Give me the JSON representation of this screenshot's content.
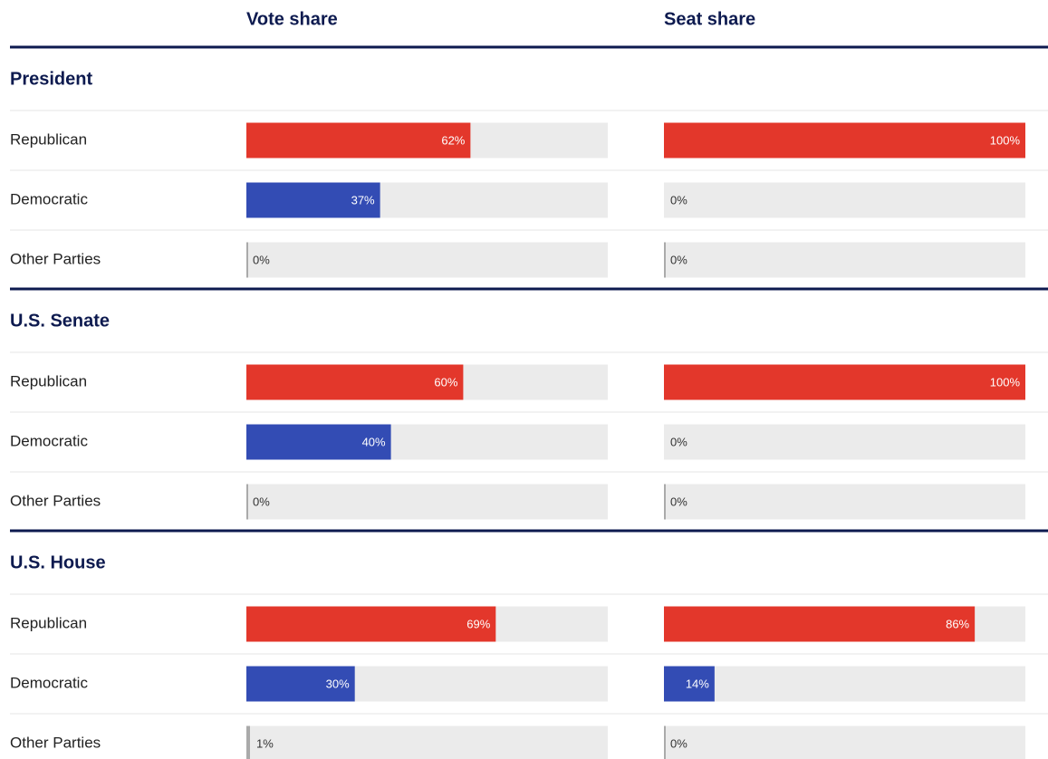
{
  "columns": [
    "Vote share",
    "Seat share"
  ],
  "sections": [
    {
      "title": "President",
      "rows": [
        {
          "party": "Republican",
          "color": "#e3372b",
          "values": [
            62,
            100
          ],
          "value_labels": [
            "62%",
            "100%"
          ]
        },
        {
          "party": "Democratic",
          "color": "#334cb4",
          "values": [
            37,
            0
          ],
          "value_labels": [
            "37%",
            "0%"
          ]
        },
        {
          "party": "Other Parties",
          "color": "#aaaaaa",
          "values": [
            0,
            0
          ],
          "value_labels": [
            "0%",
            "0%"
          ]
        }
      ]
    },
    {
      "title": "U.S. Senate",
      "rows": [
        {
          "party": "Republican",
          "color": "#e3372b",
          "values": [
            60,
            100
          ],
          "value_labels": [
            "60%",
            "100%"
          ]
        },
        {
          "party": "Democratic",
          "color": "#334cb4",
          "values": [
            40,
            0
          ],
          "value_labels": [
            "40%",
            "0%"
          ]
        },
        {
          "party": "Other Parties",
          "color": "#aaaaaa",
          "values": [
            0,
            0
          ],
          "value_labels": [
            "0%",
            "0%"
          ]
        }
      ]
    },
    {
      "title": "U.S. House",
      "rows": [
        {
          "party": "Republican",
          "color": "#e3372b",
          "values": [
            69,
            86
          ],
          "value_labels": [
            "69%",
            "86%"
          ]
        },
        {
          "party": "Democratic",
          "color": "#334cb4",
          "values": [
            30,
            14
          ],
          "value_labels": [
            "30%",
            "14%"
          ]
        },
        {
          "party": "Other Parties",
          "color": "#aaaaaa",
          "values": [
            1,
            0
          ],
          "value_labels": [
            "1%",
            "0%"
          ]
        }
      ]
    }
  ],
  "xlim": [
    0,
    100
  ]
}
